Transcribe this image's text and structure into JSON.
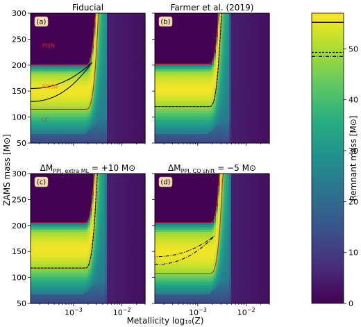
{
  "chart_data": {
    "type": "heatmap",
    "xlabel": "Metallicity log₁₀(Z)",
    "ylabel": "ZAMS mass [M⊙]",
    "x_scale": "log",
    "x_ticks": [
      {
        "value": 0.001,
        "base": "10",
        "exp": "−3"
      },
      {
        "value": 0.01,
        "base": "10",
        "exp": "−2"
      }
    ],
    "xlim": [
      0.00013,
      0.03
    ],
    "ylim": [
      50,
      300
    ],
    "y_ticks": [
      50,
      100,
      150,
      200,
      250,
      300
    ],
    "colorbar": {
      "label": "Remnant mass [M⊙]",
      "range": [
        0,
        57
      ],
      "ticks": [
        0,
        10,
        20,
        30,
        40,
        50
      ],
      "colormap": "viridis",
      "lines": [
        {
          "value": 55.2,
          "style": "solid"
        },
        {
          "value": 49.3,
          "style": "dashed"
        },
        {
          "value": 48.5,
          "style": "dashdot"
        }
      ]
    },
    "panels": [
      {
        "letter": "(a)",
        "title": "Fiducial",
        "title_sub": "",
        "title_value": "",
        "regions": [
          {
            "text": "PISN",
            "color": "#d62728"
          },
          {
            "text": "PPISN",
            "color": "#ff7f0e"
          },
          {
            "text": "CC",
            "color": "#8c564b"
          }
        ],
        "pisn_low_z": 200,
        "ppisn_low_z": 115,
        "knee_z": 0.004,
        "limit_z": 0.0047,
        "contour": {
          "style": "solid",
          "lower_low_z": 130,
          "upper_low_z": 155,
          "tip_z": 0.0024,
          "tip_m": 205
        }
      },
      {
        "letter": "(b)",
        "title": "Farmer et al. (2019)",
        "title_sub": "",
        "title_value": "",
        "regions": [],
        "pisn_low_z": 202,
        "ppisn_low_z": 120,
        "knee_z": 0.0038,
        "limit_z": 0.0045,
        "contour": {
          "style": "dashed",
          "lower_low_z": 120,
          "upper_low_z": 124,
          "edge_z": 0.0039
        }
      },
      {
        "letter": "(c)",
        "title": "ΔM",
        "title_sub": "PPI, extra ML",
        "title_value": " = +10 M⊙",
        "regions": [],
        "pisn_low_z": 205,
        "ppisn_low_z": 118,
        "knee_z": 0.0038,
        "limit_z": 0.0046,
        "contour": {
          "style": "dashed",
          "lower_low_z": 118,
          "upper_low_z": 122,
          "edge_z": 0.0039
        }
      },
      {
        "letter": "(d)",
        "title": "ΔM",
        "title_sub": "PPI, CO shift",
        "title_value": " = −5 M⊙",
        "regions": [],
        "pisn_low_z": 205,
        "ppisn_low_z": 108,
        "knee_z": 0.004,
        "limit_z": 0.0046,
        "contour": {
          "style": "dashdot",
          "lower_low_z": 125,
          "upper_low_z": 140,
          "tip_z": 0.0022,
          "tip_m": 180
        }
      }
    ]
  }
}
